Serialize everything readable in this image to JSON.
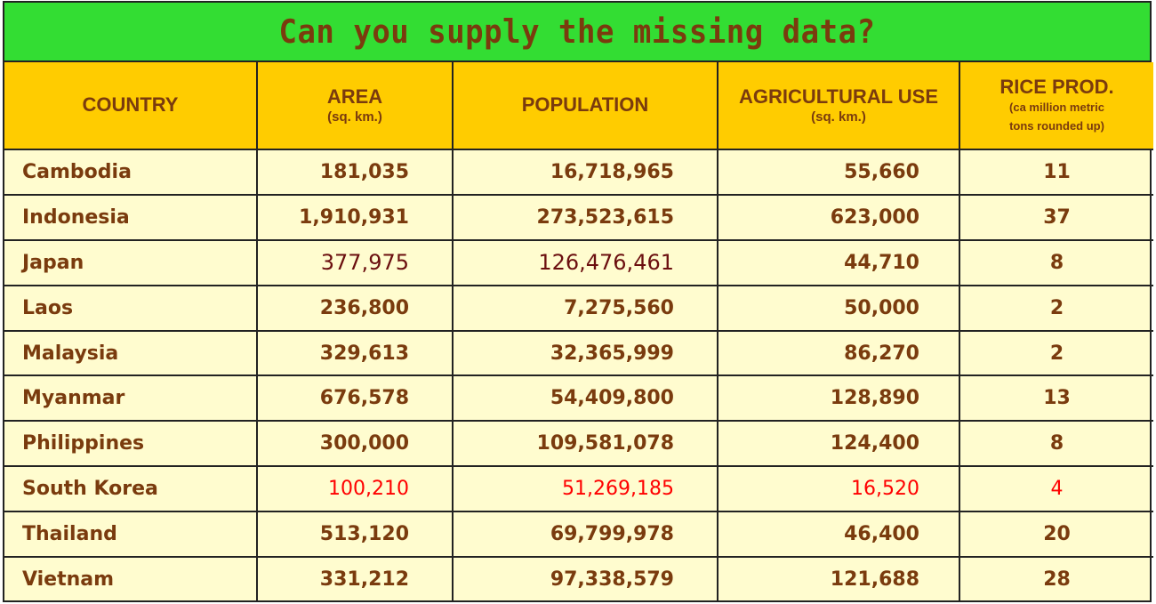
{
  "title": "Can you supply the missing data?",
  "colors": {
    "title_bg": "#33dd33",
    "header_bg": "#ffcc00",
    "body_bg": "#fffccf",
    "text": "#7a3b0e",
    "highlight_red": "#ff0000",
    "highlight_dark": "#6b0f0f"
  },
  "headers": {
    "country": "COUNTRY",
    "area": "AREA",
    "area_unit": "(sq. km.)",
    "population": "POPULATION",
    "agricultural": "AGRICULTURAL USE",
    "agricultural_unit": "(sq. km.)",
    "rice": "RICE PROD.",
    "rice_unit_1": "(ca million metric",
    "rice_unit_2": "tons rounded up)"
  },
  "rows": [
    {
      "country": "Cambodia",
      "area": "181,035",
      "population": "16,718,965",
      "agricultural": "55,660",
      "rice": "11"
    },
    {
      "country": "Indonesia",
      "area": "1,910,931",
      "population": "273,523,615",
      "agricultural": "623,000",
      "rice": "37"
    },
    {
      "country": "Japan",
      "area": "377,975",
      "population": "126,476,461",
      "agricultural": "44,710",
      "rice": "8"
    },
    {
      "country": "Laos",
      "area": "236,800",
      "population": "7,275,560",
      "agricultural": "50,000",
      "rice": "2"
    },
    {
      "country": "Malaysia",
      "area": "329,613",
      "population": "32,365,999",
      "agricultural": "86,270",
      "rice": "2"
    },
    {
      "country": "Myanmar",
      "area": "676,578",
      "population": "54,409,800",
      "agricultural": "128,890",
      "rice": "13"
    },
    {
      "country": "Philippines",
      "area": "300,000",
      "population": "109,581,078",
      "agricultural": "124,400",
      "rice": "8"
    },
    {
      "country": "South Korea",
      "area": "100,210",
      "population": "51,269,185",
      "agricultural": "16,520",
      "rice": "4"
    },
    {
      "country": "Thailand",
      "area": "513,120",
      "population": "69,799,978",
      "agricultural": "46,400",
      "rice": "20"
    },
    {
      "country": "Vietnam",
      "area": "331,212",
      "population": "97,338,579",
      "agricultural": "121,688",
      "rice": "28"
    }
  ]
}
